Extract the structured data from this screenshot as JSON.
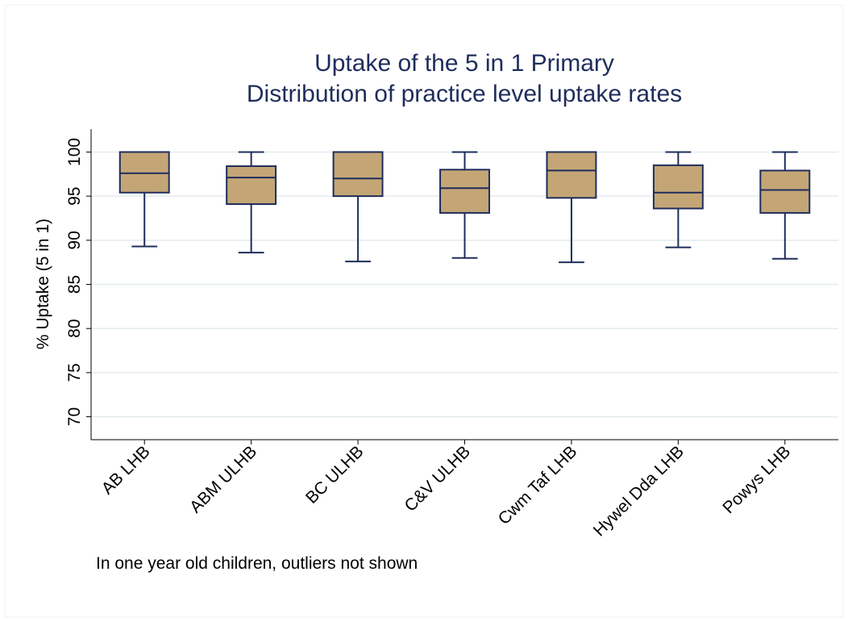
{
  "chart_data": {
    "type": "box",
    "title": [
      "Uptake of the 5 in 1 Primary",
      "Distribution of practice level uptake rates"
    ],
    "ylabel": "% Uptake (5 in 1)",
    "note": "In one year old children, outliers not shown",
    "categories": [
      "AB LHB",
      "ABM ULHB",
      "BC ULHB",
      "C&V ULHB",
      "Cwm Taf LHB",
      "Hywel Dda LHB",
      "Powys LHB"
    ],
    "min": [
      89.3,
      88.6,
      87.6,
      88.0,
      87.5,
      89.2,
      87.9
    ],
    "q1": [
      95.4,
      94.1,
      95.0,
      93.1,
      94.8,
      93.6,
      93.1
    ],
    "median": [
      97.6,
      97.1,
      97.0,
      95.9,
      97.9,
      95.4,
      95.7
    ],
    "q3": [
      100,
      98.4,
      100,
      98.0,
      100,
      98.5,
      97.9
    ],
    "max": [
      100,
      100,
      100,
      100,
      100,
      100,
      100
    ],
    "color": "#c4a676",
    "line_color": "#1f2d5c",
    "ylim": [
      67.4,
      102.6
    ],
    "yticks": [
      70,
      75,
      80,
      85,
      90,
      95,
      100
    ],
    "grid": true
  }
}
